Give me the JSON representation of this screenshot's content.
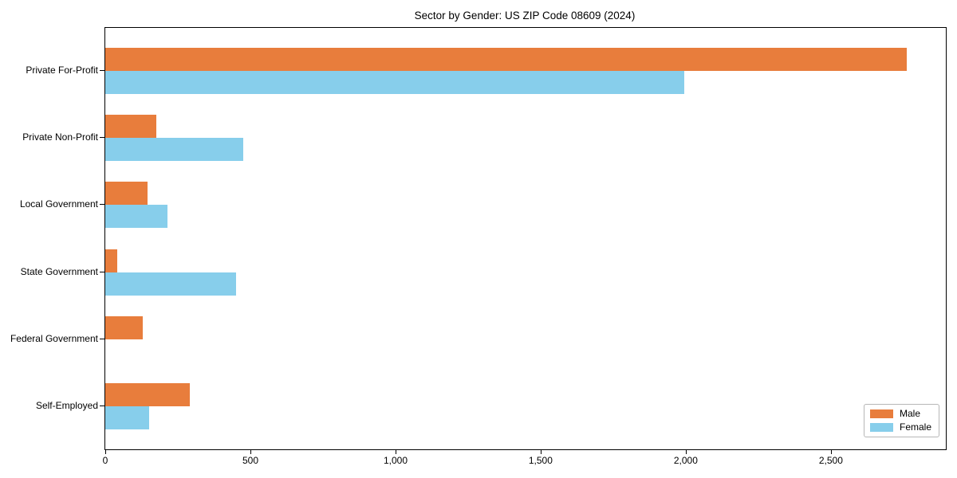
{
  "figure": {
    "background": "#ffffff",
    "axis_color": "#000000"
  },
  "chart_data": {
    "type": "bar",
    "orientation": "horizontal",
    "title": "Sector by Gender: US ZIP Code 08609 (2024)",
    "xlabel": "",
    "ylabel": "",
    "grid": false,
    "legend_position": "lower right",
    "categories": [
      "Private For-Profit",
      "Private Non-Profit",
      "Local Government",
      "State Government",
      "Federal Government",
      "Self-Employed"
    ],
    "series": [
      {
        "name": "Male",
        "color": "#E87D3C",
        "values": [
          2760,
          175,
          145,
          40,
          130,
          290
        ]
      },
      {
        "name": "Female",
        "color": "#87CEEB",
        "values": [
          1995,
          475,
          215,
          450,
          0,
          150
        ]
      }
    ],
    "xlim": [
      0,
      2896
    ],
    "xticks": [
      0,
      500,
      1000,
      1500,
      2000,
      2500
    ],
    "xtick_labels": [
      "0",
      "500",
      "1,000",
      "1,500",
      "2,000",
      "2,500"
    ]
  }
}
